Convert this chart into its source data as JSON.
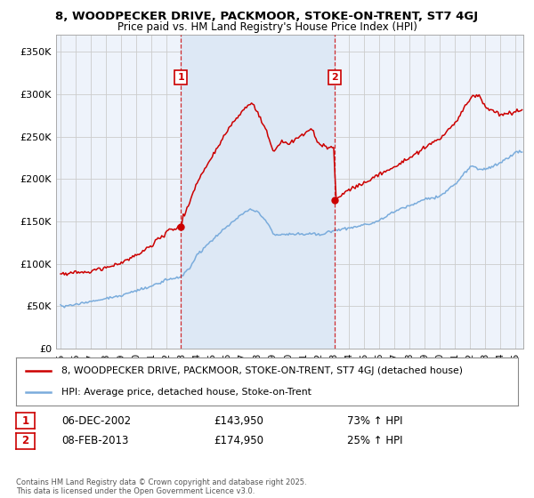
{
  "title": "8, WOODPECKER DRIVE, PACKMOOR, STOKE-ON-TRENT, ST7 4GJ",
  "subtitle": "Price paid vs. HM Land Registry's House Price Index (HPI)",
  "ylim": [
    0,
    370000
  ],
  "yticks": [
    0,
    50000,
    100000,
    150000,
    200000,
    250000,
    300000,
    350000
  ],
  "ytick_labels": [
    "£0",
    "£50K",
    "£100K",
    "£150K",
    "£200K",
    "£250K",
    "£300K",
    "£350K"
  ],
  "xlim_start": 1994.7,
  "xlim_end": 2025.5,
  "xticks": [
    1995,
    1996,
    1997,
    1998,
    1999,
    2000,
    2001,
    2002,
    2003,
    2004,
    2005,
    2006,
    2007,
    2008,
    2009,
    2010,
    2011,
    2012,
    2013,
    2014,
    2015,
    2016,
    2017,
    2018,
    2019,
    2020,
    2021,
    2022,
    2023,
    2024,
    2025
  ],
  "sale1_x": 2002.92,
  "sale1_y": 143950,
  "sale1_label": "1",
  "sale2_x": 2013.08,
  "sale2_y": 174950,
  "sale2_label": "2",
  "sale1_date": "06-DEC-2002",
  "sale1_price": "£143,950",
  "sale1_hpi": "73% ↑ HPI",
  "sale2_date": "08-FEB-2013",
  "sale2_price": "£174,950",
  "sale2_hpi": "25% ↑ HPI",
  "red_color": "#cc0000",
  "blue_color": "#7aacdc",
  "shade_color": "#dde8f5",
  "background_color": "#eef3fb",
  "grid_color": "#cccccc",
  "footer_text": "Contains HM Land Registry data © Crown copyright and database right 2025.\nThis data is licensed under the Open Government Licence v3.0.",
  "legend_line1": "8, WOODPECKER DRIVE, PACKMOOR, STOKE-ON-TRENT, ST7 4GJ (detached house)",
  "legend_line2": "HPI: Average price, detached house, Stoke-on-Trent"
}
